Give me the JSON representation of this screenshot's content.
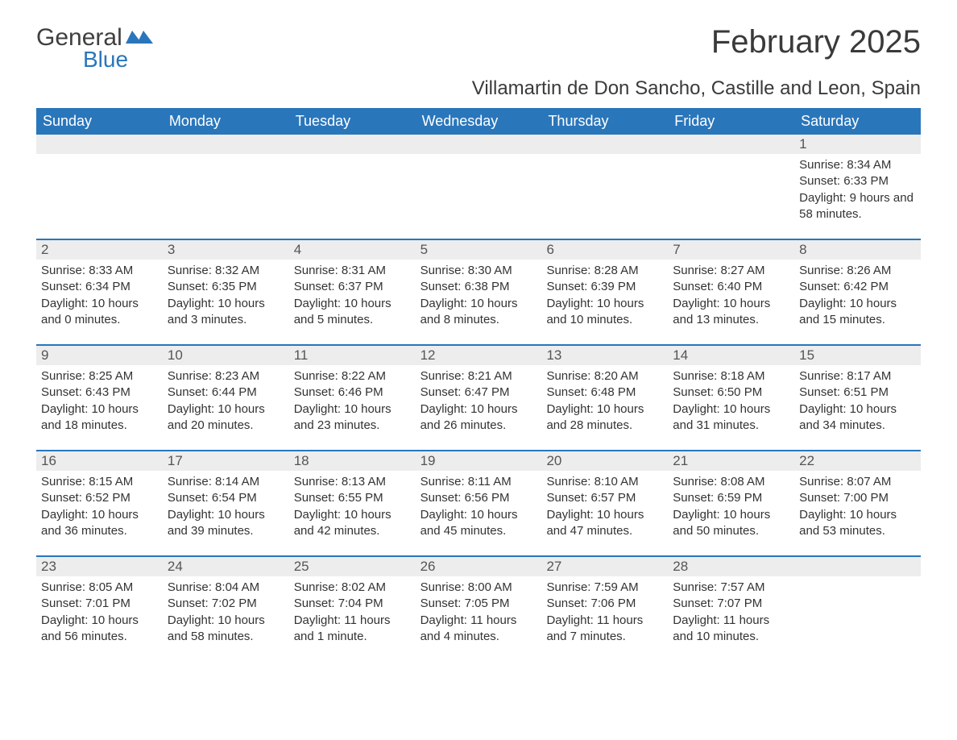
{
  "brand": {
    "word1": "General",
    "word2": "Blue"
  },
  "title": "February 2025",
  "location": "Villamartin de Don Sancho, Castille and Leon, Spain",
  "colors": {
    "header_bg": "#2a76bb",
    "header_text": "#ffffff",
    "daynum_bg": "#ededed",
    "daynum_text": "#555555",
    "body_text": "#333333",
    "week_border": "#2a76bb",
    "page_bg": "#ffffff",
    "logo_gray": "#3f3f3f",
    "logo_blue": "#2a76bb"
  },
  "typography": {
    "title_fontsize": 40,
    "location_fontsize": 24,
    "dow_fontsize": 18,
    "daynum_fontsize": 17,
    "body_fontsize": 15
  },
  "dow": [
    "Sunday",
    "Monday",
    "Tuesday",
    "Wednesday",
    "Thursday",
    "Friday",
    "Saturday"
  ],
  "weeks": [
    [
      null,
      null,
      null,
      null,
      null,
      null,
      {
        "n": "1",
        "sunrise": "Sunrise: 8:34 AM",
        "sunset": "Sunset: 6:33 PM",
        "daylight": "Daylight: 9 hours and 58 minutes."
      }
    ],
    [
      {
        "n": "2",
        "sunrise": "Sunrise: 8:33 AM",
        "sunset": "Sunset: 6:34 PM",
        "daylight": "Daylight: 10 hours and 0 minutes."
      },
      {
        "n": "3",
        "sunrise": "Sunrise: 8:32 AM",
        "sunset": "Sunset: 6:35 PM",
        "daylight": "Daylight: 10 hours and 3 minutes."
      },
      {
        "n": "4",
        "sunrise": "Sunrise: 8:31 AM",
        "sunset": "Sunset: 6:37 PM",
        "daylight": "Daylight: 10 hours and 5 minutes."
      },
      {
        "n": "5",
        "sunrise": "Sunrise: 8:30 AM",
        "sunset": "Sunset: 6:38 PM",
        "daylight": "Daylight: 10 hours and 8 minutes."
      },
      {
        "n": "6",
        "sunrise": "Sunrise: 8:28 AM",
        "sunset": "Sunset: 6:39 PM",
        "daylight": "Daylight: 10 hours and 10 minutes."
      },
      {
        "n": "7",
        "sunrise": "Sunrise: 8:27 AM",
        "sunset": "Sunset: 6:40 PM",
        "daylight": "Daylight: 10 hours and 13 minutes."
      },
      {
        "n": "8",
        "sunrise": "Sunrise: 8:26 AM",
        "sunset": "Sunset: 6:42 PM",
        "daylight": "Daylight: 10 hours and 15 minutes."
      }
    ],
    [
      {
        "n": "9",
        "sunrise": "Sunrise: 8:25 AM",
        "sunset": "Sunset: 6:43 PM",
        "daylight": "Daylight: 10 hours and 18 minutes."
      },
      {
        "n": "10",
        "sunrise": "Sunrise: 8:23 AM",
        "sunset": "Sunset: 6:44 PM",
        "daylight": "Daylight: 10 hours and 20 minutes."
      },
      {
        "n": "11",
        "sunrise": "Sunrise: 8:22 AM",
        "sunset": "Sunset: 6:46 PM",
        "daylight": "Daylight: 10 hours and 23 minutes."
      },
      {
        "n": "12",
        "sunrise": "Sunrise: 8:21 AM",
        "sunset": "Sunset: 6:47 PM",
        "daylight": "Daylight: 10 hours and 26 minutes."
      },
      {
        "n": "13",
        "sunrise": "Sunrise: 8:20 AM",
        "sunset": "Sunset: 6:48 PM",
        "daylight": "Daylight: 10 hours and 28 minutes."
      },
      {
        "n": "14",
        "sunrise": "Sunrise: 8:18 AM",
        "sunset": "Sunset: 6:50 PM",
        "daylight": "Daylight: 10 hours and 31 minutes."
      },
      {
        "n": "15",
        "sunrise": "Sunrise: 8:17 AM",
        "sunset": "Sunset: 6:51 PM",
        "daylight": "Daylight: 10 hours and 34 minutes."
      }
    ],
    [
      {
        "n": "16",
        "sunrise": "Sunrise: 8:15 AM",
        "sunset": "Sunset: 6:52 PM",
        "daylight": "Daylight: 10 hours and 36 minutes."
      },
      {
        "n": "17",
        "sunrise": "Sunrise: 8:14 AM",
        "sunset": "Sunset: 6:54 PM",
        "daylight": "Daylight: 10 hours and 39 minutes."
      },
      {
        "n": "18",
        "sunrise": "Sunrise: 8:13 AM",
        "sunset": "Sunset: 6:55 PM",
        "daylight": "Daylight: 10 hours and 42 minutes."
      },
      {
        "n": "19",
        "sunrise": "Sunrise: 8:11 AM",
        "sunset": "Sunset: 6:56 PM",
        "daylight": "Daylight: 10 hours and 45 minutes."
      },
      {
        "n": "20",
        "sunrise": "Sunrise: 8:10 AM",
        "sunset": "Sunset: 6:57 PM",
        "daylight": "Daylight: 10 hours and 47 minutes."
      },
      {
        "n": "21",
        "sunrise": "Sunrise: 8:08 AM",
        "sunset": "Sunset: 6:59 PM",
        "daylight": "Daylight: 10 hours and 50 minutes."
      },
      {
        "n": "22",
        "sunrise": "Sunrise: 8:07 AM",
        "sunset": "Sunset: 7:00 PM",
        "daylight": "Daylight: 10 hours and 53 minutes."
      }
    ],
    [
      {
        "n": "23",
        "sunrise": "Sunrise: 8:05 AM",
        "sunset": "Sunset: 7:01 PM",
        "daylight": "Daylight: 10 hours and 56 minutes."
      },
      {
        "n": "24",
        "sunrise": "Sunrise: 8:04 AM",
        "sunset": "Sunset: 7:02 PM",
        "daylight": "Daylight: 10 hours and 58 minutes."
      },
      {
        "n": "25",
        "sunrise": "Sunrise: 8:02 AM",
        "sunset": "Sunset: 7:04 PM",
        "daylight": "Daylight: 11 hours and 1 minute."
      },
      {
        "n": "26",
        "sunrise": "Sunrise: 8:00 AM",
        "sunset": "Sunset: 7:05 PM",
        "daylight": "Daylight: 11 hours and 4 minutes."
      },
      {
        "n": "27",
        "sunrise": "Sunrise: 7:59 AM",
        "sunset": "Sunset: 7:06 PM",
        "daylight": "Daylight: 11 hours and 7 minutes."
      },
      {
        "n": "28",
        "sunrise": "Sunrise: 7:57 AM",
        "sunset": "Sunset: 7:07 PM",
        "daylight": "Daylight: 11 hours and 10 minutes."
      },
      null
    ]
  ]
}
